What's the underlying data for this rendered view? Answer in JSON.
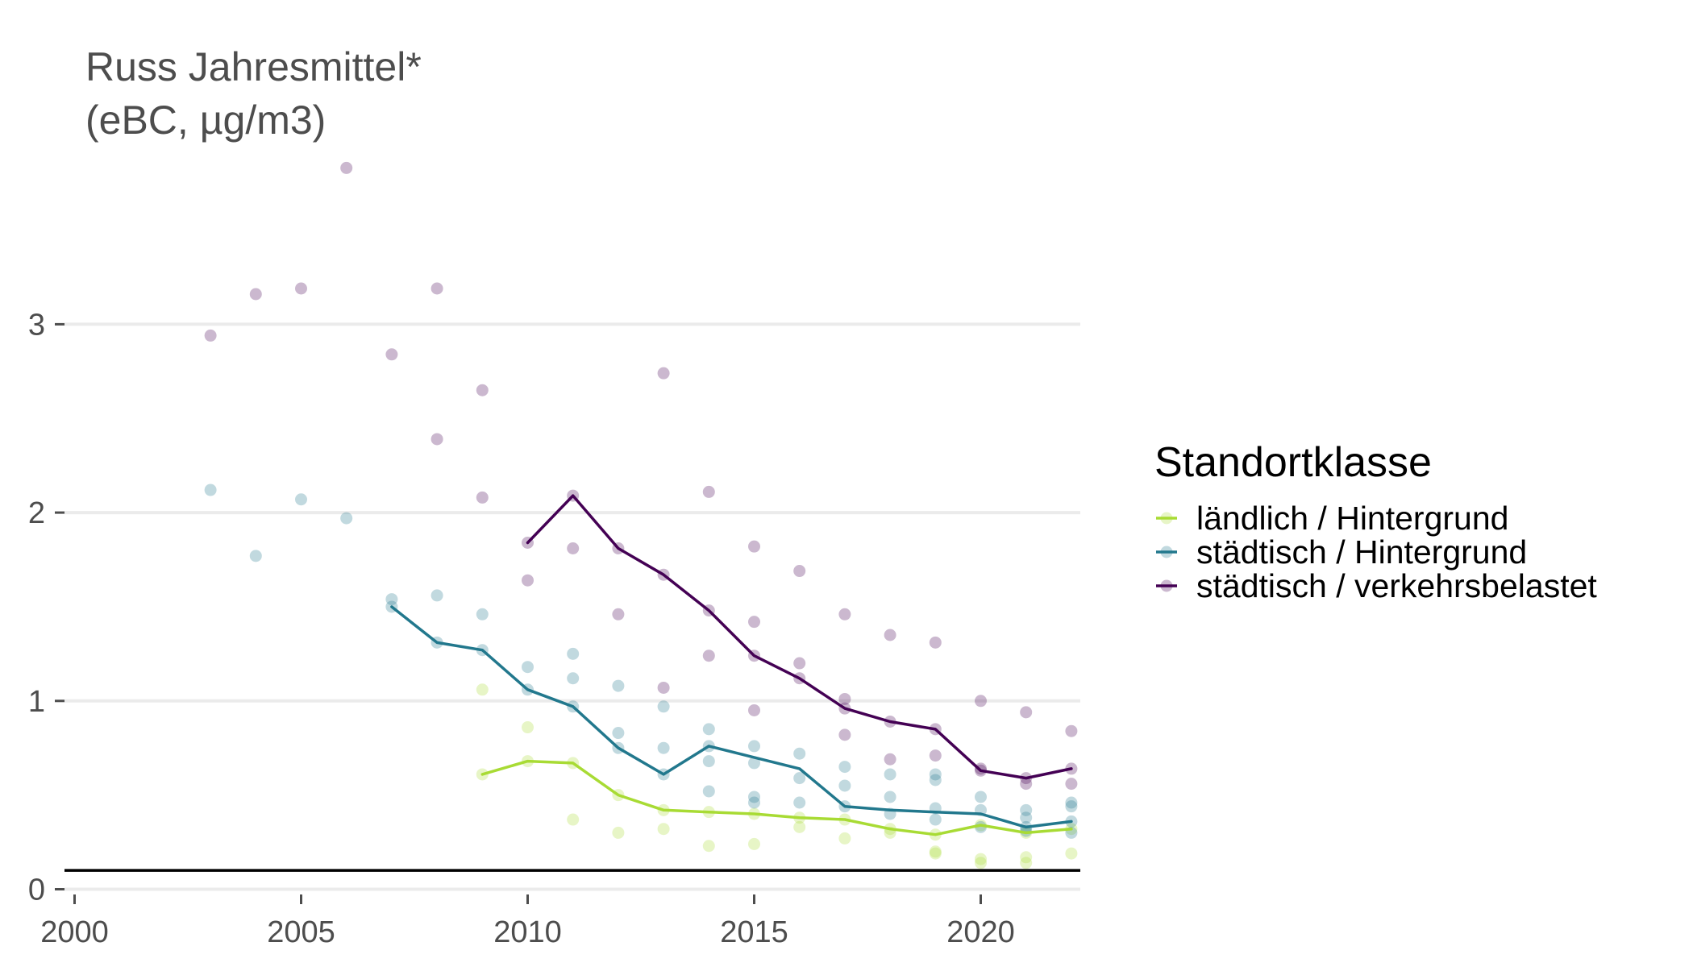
{
  "chart_data": {
    "type": "line",
    "title_lines": [
      "Russ Jahresmittel*",
      "(eBC, µg/m3)"
    ],
    "xlabel": "",
    "ylabel": "",
    "xlim": [
      1999.7,
      2022.3
    ],
    "ylim": [
      -0.05,
      3.85
    ],
    "x_ticks": [
      2000,
      2005,
      2010,
      2015,
      2020
    ],
    "y_ticks": [
      0,
      1,
      2,
      3
    ],
    "grid": true,
    "reference_line": 0.1,
    "legend": {
      "title": "Standortklasse",
      "placement": "right",
      "items": [
        "ländlich / Hintergrund",
        "städtisch / Hintergrund",
        "städtisch / verkehrsbelastet"
      ]
    },
    "series": [
      {
        "name": "ländlich / Hintergrund",
        "color": "#a8db34",
        "line": [
          [
            2009,
            0.61
          ],
          [
            2010,
            0.68
          ],
          [
            2011,
            0.67
          ],
          [
            2012,
            0.5
          ],
          [
            2013,
            0.42
          ],
          [
            2014,
            0.41
          ],
          [
            2015,
            0.4
          ],
          [
            2016,
            0.38
          ],
          [
            2017,
            0.37
          ],
          [
            2018,
            0.32
          ],
          [
            2019,
            0.29
          ],
          [
            2020,
            0.34
          ],
          [
            2021,
            0.3
          ],
          [
            2022,
            0.32
          ]
        ],
        "points": [
          [
            2009,
            1.06
          ],
          [
            2009,
            0.61
          ],
          [
            2010,
            0.86
          ],
          [
            2010,
            0.68
          ],
          [
            2011,
            0.67
          ],
          [
            2011,
            0.37
          ],
          [
            2012,
            0.5
          ],
          [
            2012,
            0.3
          ],
          [
            2013,
            0.42
          ],
          [
            2013,
            0.32
          ],
          [
            2014,
            0.41
          ],
          [
            2014,
            0.23
          ],
          [
            2015,
            0.4
          ],
          [
            2015,
            0.24
          ],
          [
            2016,
            0.38
          ],
          [
            2016,
            0.33
          ],
          [
            2017,
            0.37
          ],
          [
            2017,
            0.27
          ],
          [
            2018,
            0.32
          ],
          [
            2018,
            0.3
          ],
          [
            2019,
            0.29
          ],
          [
            2019,
            0.2
          ],
          [
            2019,
            0.19
          ],
          [
            2020,
            0.34
          ],
          [
            2020,
            0.16
          ],
          [
            2020,
            0.14
          ],
          [
            2021,
            0.3
          ],
          [
            2021,
            0.17
          ],
          [
            2021,
            0.14
          ],
          [
            2022,
            0.32
          ],
          [
            2022,
            0.19
          ]
        ]
      },
      {
        "name": "städtisch / Hintergrund",
        "color": "#22788d",
        "line": [
          [
            2007,
            1.5
          ],
          [
            2008,
            1.31
          ],
          [
            2009,
            1.27
          ],
          [
            2010,
            1.06
          ],
          [
            2011,
            0.97
          ],
          [
            2012,
            0.75
          ],
          [
            2013,
            0.61
          ],
          [
            2014,
            0.76
          ],
          [
            2015,
            0.7
          ],
          [
            2016,
            0.64
          ],
          [
            2017,
            0.44
          ],
          [
            2018,
            0.42
          ],
          [
            2019,
            0.41
          ],
          [
            2020,
            0.4
          ],
          [
            2021,
            0.33
          ],
          [
            2022,
            0.36
          ]
        ],
        "points": [
          [
            2003,
            2.12
          ],
          [
            2004,
            1.77
          ],
          [
            2005,
            2.07
          ],
          [
            2006,
            1.97
          ],
          [
            2007,
            1.54
          ],
          [
            2007,
            1.5
          ],
          [
            2008,
            1.56
          ],
          [
            2008,
            1.31
          ],
          [
            2009,
            1.46
          ],
          [
            2009,
            1.27
          ],
          [
            2010,
            1.18
          ],
          [
            2010,
            1.06
          ],
          [
            2011,
            1.25
          ],
          [
            2011,
            1.12
          ],
          [
            2011,
            0.97
          ],
          [
            2012,
            1.08
          ],
          [
            2012,
            0.83
          ],
          [
            2012,
            0.75
          ],
          [
            2013,
            0.97
          ],
          [
            2013,
            0.75
          ],
          [
            2013,
            0.61
          ],
          [
            2014,
            0.85
          ],
          [
            2014,
            0.76
          ],
          [
            2014,
            0.68
          ],
          [
            2014,
            0.52
          ],
          [
            2015,
            0.76
          ],
          [
            2015,
            0.67
          ],
          [
            2015,
            0.49
          ],
          [
            2015,
            0.46
          ],
          [
            2016,
            0.72
          ],
          [
            2016,
            0.59
          ],
          [
            2016,
            0.46
          ],
          [
            2017,
            0.65
          ],
          [
            2017,
            0.55
          ],
          [
            2017,
            0.44
          ],
          [
            2018,
            0.61
          ],
          [
            2018,
            0.49
          ],
          [
            2018,
            0.4
          ],
          [
            2019,
            0.61
          ],
          [
            2019,
            0.58
          ],
          [
            2019,
            0.43
          ],
          [
            2019,
            0.37
          ],
          [
            2020,
            0.49
          ],
          [
            2020,
            0.42
          ],
          [
            2020,
            0.33
          ],
          [
            2021,
            0.42
          ],
          [
            2021,
            0.38
          ],
          [
            2021,
            0.33
          ],
          [
            2021,
            0.31
          ],
          [
            2022,
            0.46
          ],
          [
            2022,
            0.44
          ],
          [
            2022,
            0.36
          ],
          [
            2022,
            0.3
          ]
        ]
      },
      {
        "name": "städtisch / verkehrsbelastet",
        "color": "#440154",
        "line": [
          [
            2010,
            1.84
          ],
          [
            2011,
            2.09
          ],
          [
            2012,
            1.81
          ],
          [
            2013,
            1.67
          ],
          [
            2014,
            1.48
          ],
          [
            2015,
            1.24
          ],
          [
            2016,
            1.12
          ],
          [
            2017,
            0.96
          ],
          [
            2018,
            0.89
          ],
          [
            2019,
            0.85
          ],
          [
            2020,
            0.63
          ],
          [
            2021,
            0.59
          ],
          [
            2022,
            0.64
          ]
        ],
        "points": [
          [
            2003,
            2.94
          ],
          [
            2004,
            3.16
          ],
          [
            2005,
            3.19
          ],
          [
            2006,
            3.83
          ],
          [
            2007,
            2.84
          ],
          [
            2008,
            3.19
          ],
          [
            2008,
            2.39
          ],
          [
            2009,
            2.65
          ],
          [
            2009,
            2.08
          ],
          [
            2010,
            1.84
          ],
          [
            2010,
            1.64
          ],
          [
            2011,
            2.09
          ],
          [
            2011,
            1.81
          ],
          [
            2012,
            1.81
          ],
          [
            2012,
            1.46
          ],
          [
            2013,
            2.74
          ],
          [
            2013,
            1.67
          ],
          [
            2013,
            1.07
          ],
          [
            2014,
            2.11
          ],
          [
            2014,
            1.48
          ],
          [
            2014,
            1.24
          ],
          [
            2015,
            1.82
          ],
          [
            2015,
            1.42
          ],
          [
            2015,
            1.24
          ],
          [
            2015,
            0.95
          ],
          [
            2016,
            1.69
          ],
          [
            2016,
            1.2
          ],
          [
            2016,
            1.12
          ],
          [
            2017,
            1.46
          ],
          [
            2017,
            1.01
          ],
          [
            2017,
            0.96
          ],
          [
            2017,
            0.82
          ],
          [
            2018,
            1.35
          ],
          [
            2018,
            0.89
          ],
          [
            2018,
            0.69
          ],
          [
            2019,
            1.31
          ],
          [
            2019,
            0.85
          ],
          [
            2019,
            0.71
          ],
          [
            2020,
            1.0
          ],
          [
            2020,
            0.64
          ],
          [
            2020,
            0.63
          ],
          [
            2021,
            0.94
          ],
          [
            2021,
            0.59
          ],
          [
            2021,
            0.56
          ],
          [
            2022,
            0.84
          ],
          [
            2022,
            0.64
          ],
          [
            2022,
            0.56
          ]
        ]
      }
    ]
  }
}
